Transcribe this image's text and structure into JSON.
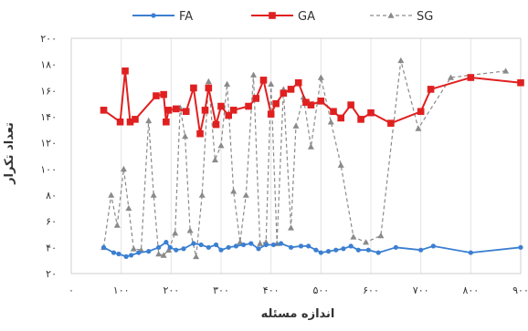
{
  "chart_data": {
    "type": "line",
    "xlabel": "اندازه مسئله",
    "ylabel": "تعداد تکرار",
    "xlim": [
      0,
      900
    ],
    "ylim": [
      20,
      200
    ],
    "x_ticks": [
      "۰",
      "۱۰۰",
      "۲۰۰",
      "۳۰۰",
      "۴۰۰",
      "۵۰۰",
      "۶۰۰",
      "۷۰۰",
      "۸۰۰",
      "۹۰۰"
    ],
    "x_tick_values": [
      0,
      100,
      200,
      300,
      400,
      500,
      600,
      700,
      800,
      900
    ],
    "y_ticks": [
      "۲۰",
      "۴۰",
      "۶۰",
      "۸۰",
      "۱۰۰",
      "۱۲۰",
      "۱۴۰",
      "۱۶۰",
      "۱۸۰",
      "۲۰۰"
    ],
    "y_tick_values": [
      20,
      40,
      60,
      80,
      100,
      120,
      140,
      160,
      180,
      200
    ],
    "grid": "vertical",
    "legend": "top",
    "series": [
      {
        "name": "FA",
        "color": "#3b7fd1",
        "marker": "circle",
        "dash": "solid",
        "points": [
          [
            65,
            40
          ],
          [
            85,
            36
          ],
          [
            95,
            35
          ],
          [
            110,
            33
          ],
          [
            120,
            34
          ],
          [
            135,
            36
          ],
          [
            155,
            37
          ],
          [
            175,
            40
          ],
          [
            190,
            44
          ],
          [
            198,
            40
          ],
          [
            210,
            38
          ],
          [
            225,
            39
          ],
          [
            245,
            43
          ],
          [
            260,
            42
          ],
          [
            275,
            40
          ],
          [
            290,
            42
          ],
          [
            300,
            38
          ],
          [
            315,
            40
          ],
          [
            330,
            41
          ],
          [
            345,
            42
          ],
          [
            360,
            43
          ],
          [
            375,
            39
          ],
          [
            390,
            42
          ],
          [
            405,
            42
          ],
          [
            420,
            43
          ],
          [
            440,
            40
          ],
          [
            460,
            41
          ],
          [
            475,
            41
          ],
          [
            490,
            38
          ],
          [
            500,
            36
          ],
          [
            515,
            37
          ],
          [
            530,
            38
          ],
          [
            545,
            39
          ],
          [
            560,
            41
          ],
          [
            575,
            38
          ],
          [
            595,
            38
          ],
          [
            615,
            36
          ],
          [
            650,
            40
          ],
          [
            700,
            38
          ],
          [
            725,
            41
          ],
          [
            800,
            36
          ],
          [
            900,
            40
          ]
        ]
      },
      {
        "name": "GA",
        "color": "#e02020",
        "marker": "square",
        "dash": "solid",
        "points": [
          [
            65,
            145
          ],
          [
            98,
            136
          ],
          [
            108,
            175
          ],
          [
            118,
            136
          ],
          [
            128,
            138
          ],
          [
            170,
            156
          ],
          [
            185,
            157
          ],
          [
            190,
            136
          ],
          [
            195,
            145
          ],
          [
            210,
            146
          ],
          [
            230,
            144
          ],
          [
            245,
            162
          ],
          [
            258,
            127
          ],
          [
            268,
            145
          ],
          [
            275,
            162
          ],
          [
            290,
            134
          ],
          [
            300,
            148
          ],
          [
            315,
            141
          ],
          [
            325,
            145
          ],
          [
            355,
            148
          ],
          [
            370,
            154
          ],
          [
            385,
            168
          ],
          [
            400,
            142
          ],
          [
            410,
            150
          ],
          [
            425,
            158
          ],
          [
            440,
            161
          ],
          [
            455,
            166
          ],
          [
            470,
            151
          ],
          [
            480,
            149
          ],
          [
            500,
            152
          ],
          [
            525,
            144
          ],
          [
            540,
            139
          ],
          [
            560,
            149
          ],
          [
            580,
            138
          ],
          [
            600,
            143
          ],
          [
            640,
            135
          ],
          [
            700,
            144
          ],
          [
            720,
            161
          ],
          [
            800,
            170
          ],
          [
            900,
            166
          ]
        ]
      },
      {
        "name": "SG",
        "color": "#8a8a8a",
        "marker": "triangle",
        "dash": "dashed",
        "points": [
          [
            65,
            40
          ],
          [
            80,
            80
          ],
          [
            92,
            57
          ],
          [
            105,
            100
          ],
          [
            115,
            70
          ],
          [
            125,
            39
          ],
          [
            140,
            38
          ],
          [
            155,
            137
          ],
          [
            165,
            80
          ],
          [
            175,
            35
          ],
          [
            185,
            34
          ],
          [
            195,
            38
          ],
          [
            208,
            51
          ],
          [
            218,
            147
          ],
          [
            228,
            125
          ],
          [
            238,
            53
          ],
          [
            250,
            33
          ],
          [
            262,
            80
          ],
          [
            275,
            167
          ],
          [
            288,
            107
          ],
          [
            300,
            118
          ],
          [
            312,
            165
          ],
          [
            325,
            83
          ],
          [
            338,
            44
          ],
          [
            350,
            80
          ],
          [
            365,
            172
          ],
          [
            378,
            43
          ],
          [
            390,
            44
          ],
          [
            400,
            165
          ],
          [
            412,
            43
          ],
          [
            425,
            161
          ],
          [
            440,
            55
          ],
          [
            450,
            133
          ],
          [
            465,
            155
          ],
          [
            480,
            117
          ],
          [
            500,
            170
          ],
          [
            520,
            136
          ],
          [
            540,
            103
          ],
          [
            565,
            48
          ],
          [
            590,
            44
          ],
          [
            620,
            49
          ],
          [
            660,
            183
          ],
          [
            695,
            131
          ],
          [
            760,
            170
          ],
          [
            870,
            175
          ]
        ]
      }
    ]
  }
}
